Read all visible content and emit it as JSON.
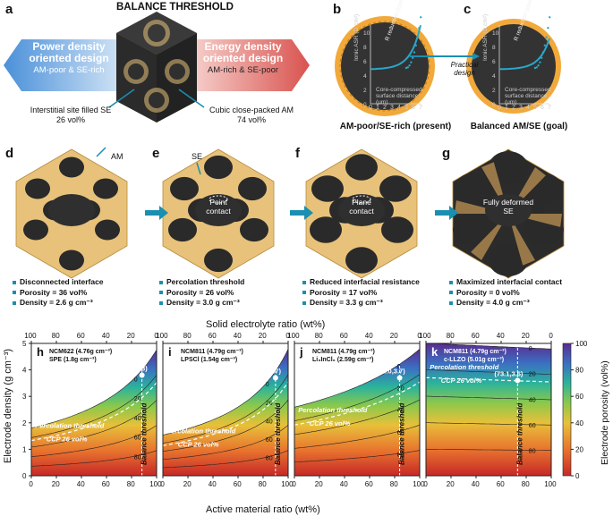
{
  "top": {
    "panel_a": {
      "label": "a",
      "title": "BALANCE THRESHOLD",
      "left_title_1": "Power density",
      "left_title_2": "oriented design",
      "left_sub": "AM-poor & SE-rich",
      "right_title_1": "Energy density",
      "right_title_2": "oriented design",
      "right_sub": "AM-rich & SE-poor",
      "left_note_1": "Interstitial site filled SE",
      "left_note_2": "26 vol%",
      "right_note_1": "Cubic close-packed AM",
      "right_note_2": "74 vol%"
    },
    "panel_b": {
      "label": "b",
      "caption": "AM-poor/SE-rich (present)",
      "arrow_label_1": "Practical",
      "arrow_label_2": "design"
    },
    "panel_c": {
      "label": "c",
      "caption": "Balanced AM/SE (goal)"
    },
    "inset": {
      "ylabel_1": "Ionic ASR",
      "ylabel_2": "(Ω cm²)",
      "xlabel_1": "Core-compressed",
      "xlabel_2": "surface distance",
      "xlabel_3": "(μm)",
      "xticks": [
        "0",
        "1",
        "2",
        "3",
        "4",
        "5",
        "6",
        "7"
      ],
      "yticks": [
        "0",
        "2",
        "4",
        "6",
        "8",
        "10"
      ],
      "badge_1": "R reduction",
      "badge_2": "(compress)"
    }
  },
  "middle": {
    "arrow_am": "AM",
    "arrow_se": "SE",
    "stages": [
      {
        "label": "d",
        "center": "",
        "bullets": [
          "Disconnected interface",
          "Porosity = 36 vol%",
          "Density = 2.6 g cm⁻³"
        ]
      },
      {
        "label": "e",
        "center": "Point contact",
        "bullets": [
          "Percolation threshold",
          "Porosity = 26 vol%",
          "Density = 3.0 g cm⁻³"
        ]
      },
      {
        "label": "f",
        "center": "Plane contact",
        "bullets": [
          "Reduced interfacial resistance",
          "Porosity = 17 vol%",
          "Density = 3.3 g cm⁻³"
        ]
      },
      {
        "label": "g",
        "center": "Fully deformed SE",
        "bullets": [
          "Maximized interfacial contact",
          "Porosity = 0 vol%",
          "Density = 4.0 g cm⁻³"
        ]
      }
    ]
  },
  "bottom": {
    "top_axis_title": "Solid electrolyte ratio (wt%)",
    "bottom_axis_title": "Active material ratio (wt%)",
    "left_axis_title": "Electrode density (g cm⁻³)",
    "colorbar_title": "Electrode porosity (vol%)",
    "top_ticks": [
      "100",
      "80",
      "60",
      "40",
      "20",
      "0"
    ],
    "bottom_ticks": [
      "0",
      "20",
      "40",
      "60",
      "80",
      "100"
    ],
    "y_ticks": [
      "0",
      "1",
      "2",
      "3",
      "4",
      "5"
    ],
    "colorbar_ticks": [
      "0",
      "20",
      "40",
      "60",
      "80",
      "100"
    ],
    "percolation_label": "Percolation threshold",
    "ccp_label": "CCP 26 vol%",
    "balance_label": "Balance threshold",
    "colors": {
      "accent": "#1a8fb0",
      "am": "#2d2d2d",
      "se": "#e8c27a"
    }
  },
  "chart_data": [
    {
      "type": "heatmap",
      "label": "h",
      "title_1": "NCM622 (4.76g cm⁻³)",
      "title_2": "SPE (1.8g cm⁻³)",
      "am_density": 4.76,
      "se_density": 1.8,
      "balance_point": {
        "am_wt": 88.3,
        "density": 3.8,
        "text": "(88.3,3.8)"
      },
      "contour_levels": [
        "0",
        "20",
        "40",
        "60",
        "80"
      ],
      "xlim": [
        0,
        100
      ],
      "ylim": [
        0,
        5
      ],
      "zlim": [
        0,
        100
      ]
    },
    {
      "type": "heatmap",
      "label": "i",
      "title_1": "NCM811 (4.79g cm⁻³)",
      "title_2": "LPSCl (1.54g cm⁻³)",
      "am_density": 4.79,
      "se_density": 1.54,
      "balance_point": {
        "am_wt": 89.9,
        "density": 3.7,
        "text": "(89.9,3.7)"
      },
      "contour_levels": [
        "0",
        "20",
        "40",
        "60",
        "80"
      ],
      "xlim": [
        0,
        100
      ],
      "ylim": [
        0,
        5
      ],
      "zlim": [
        0,
        100
      ]
    },
    {
      "type": "heatmap",
      "label": "j",
      "title_1": "NCM811 (4.79g cm⁻³)",
      "title_2": "Li₃InCl₆ (2.59g cm⁻³)",
      "am_density": 4.79,
      "se_density": 2.59,
      "balance_point": {
        "am_wt": 84.0,
        "density": 3.7,
        "text": "(84.0,3.7)"
      },
      "contour_levels": [
        "0",
        "20",
        "40",
        "60",
        "80"
      ],
      "xlim": [
        0,
        100
      ],
      "ylim": [
        0,
        5
      ],
      "zlim": [
        0,
        100
      ]
    },
    {
      "type": "heatmap",
      "label": "k",
      "title_1": "NCM811 (4.79g cm⁻³)",
      "title_2": "c-LLZO (5.01g cm⁻³)",
      "am_density": 4.79,
      "se_density": 5.01,
      "balance_point": {
        "am_wt": 73.1,
        "density": 3.6,
        "text": "(73.1,3.6)"
      },
      "contour_levels": [
        "0",
        "20",
        "40",
        "60",
        "80"
      ],
      "xlim": [
        0,
        100
      ],
      "ylim": [
        0,
        5
      ],
      "zlim": [
        0,
        100
      ]
    }
  ]
}
